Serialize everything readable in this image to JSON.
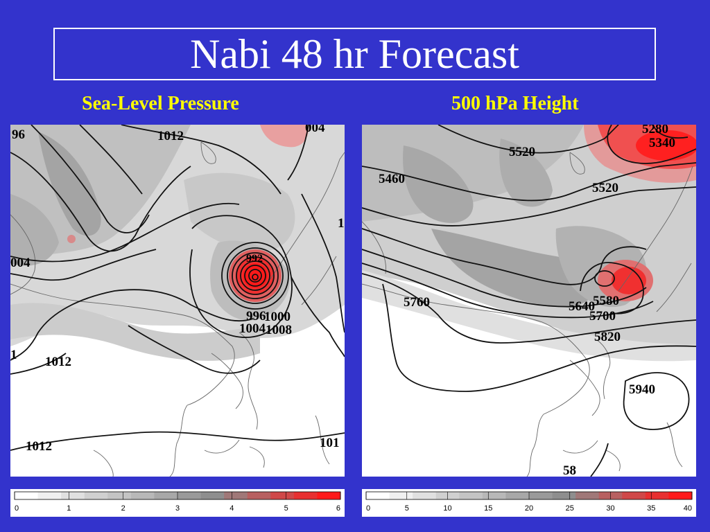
{
  "title": "Nabi 48 hr Forecast",
  "panels": [
    {
      "title": "Sea-Level Pressure",
      "contour_labels": [
        "96",
        "1012",
        "004",
        "004",
        "1",
        "992",
        "996",
        "1000",
        "1004",
        "1008",
        "1012",
        "1012",
        "101",
        "1",
        "1012"
      ],
      "colorbar": {
        "ticks": [
          "0",
          "1",
          "2",
          "3",
          "4",
          "5",
          "6"
        ]
      }
    },
    {
      "title": "500 hPa Height",
      "contour_labels": [
        "5280",
        "5340",
        "5520",
        "5460",
        "5520",
        "5760",
        "5580",
        "5640",
        "5700",
        "5820",
        "5940",
        "58"
      ],
      "colorbar": {
        "ticks": [
          "0",
          "5",
          "10",
          "15",
          "20",
          "25",
          "30",
          "35",
          "40"
        ]
      }
    }
  ],
  "colors": {
    "background": "#3333cc",
    "title": "#ffffff",
    "subtitle": "#ffff00",
    "colorscale": [
      "#ffffff",
      "#f0f0f0",
      "#e0e0e0",
      "#d0d0d0",
      "#c4c4c4",
      "#b8b8b8",
      "#a8a8a8",
      "#9a9a9a",
      "#8e8e8e",
      "#a07878",
      "#b86060",
      "#d04848",
      "#e83030",
      "#ff1a1a"
    ]
  }
}
